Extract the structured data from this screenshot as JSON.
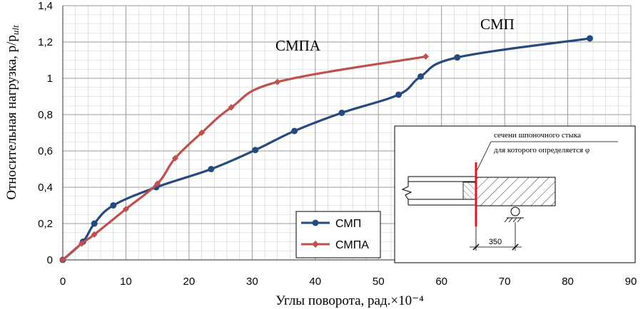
{
  "chart_data": {
    "type": "line",
    "title": "",
    "xlabel": "Углы поворота, рад.×10⁻⁴",
    "ylabel": "Относительная нагрузка, p/p",
    "ylabel_sub": "ult",
    "xlim": [
      0,
      90
    ],
    "ylim": [
      0,
      1.4
    ],
    "x_ticks": [
      "0",
      "10",
      "20",
      "30",
      "40",
      "50",
      "60",
      "70",
      "80",
      "90"
    ],
    "y_ticks": [
      "0",
      "0,2",
      "0,4",
      "0,6",
      "0,8",
      "1",
      "1,2",
      "1,4"
    ],
    "grid": true,
    "legend_position": "bottom-center",
    "series": [
      {
        "name": "СМП",
        "color": "#244a7e",
        "marker": "circle",
        "x": [
          0,
          3.2,
          5.0,
          8.0,
          14.8,
          23.5,
          30.5,
          36.7,
          44.2,
          53.2,
          56.7,
          62.5,
          83.5
        ],
        "y": [
          0,
          0.1,
          0.2,
          0.3,
          0.4,
          0.5,
          0.605,
          0.71,
          0.81,
          0.91,
          1.01,
          1.115,
          1.22
        ]
      },
      {
        "name": "СМПА",
        "color": "#c0504d",
        "marker": "diamond",
        "x": [
          0,
          3.0,
          5.0,
          10.0,
          15.0,
          17.8,
          22.0,
          26.7,
          34.0,
          57.5
        ],
        "y": [
          0,
          0.09,
          0.14,
          0.28,
          0.42,
          0.56,
          0.7,
          0.84,
          0.98,
          1.12
        ]
      }
    ]
  },
  "annotations": {
    "label_smpa": "СМПА",
    "label_smp": "СМП"
  },
  "inset": {
    "caption_line1": "сечени шпоночного стыка",
    "caption_line2": "для которого определяется φ",
    "dimension": "350"
  }
}
